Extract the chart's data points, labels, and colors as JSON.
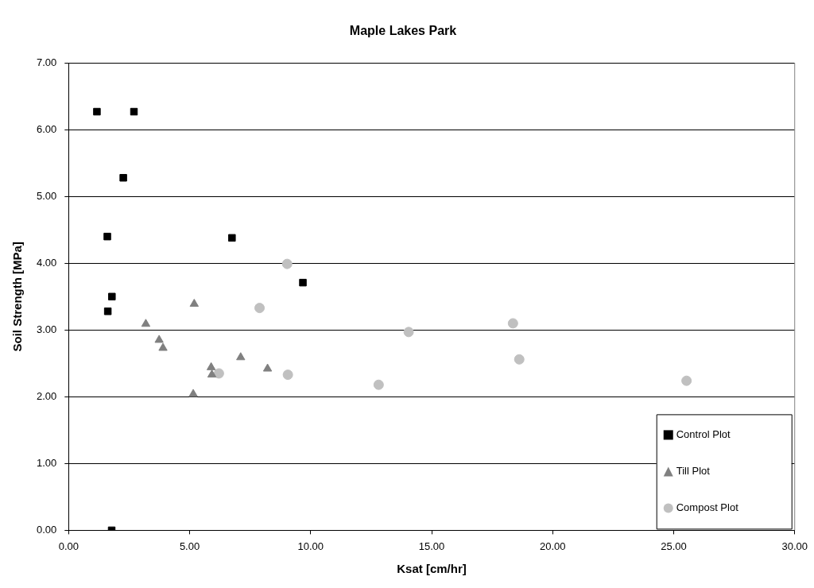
{
  "chart_data": {
    "type": "scatter",
    "title": "Maple Lakes Park",
    "xlabel": "Ksat [cm/hr]",
    "ylabel": "Soil Strength [MPa]",
    "xlim": [
      0,
      30
    ],
    "xticks": [
      {
        "value": 0,
        "label": "0.00"
      },
      {
        "value": 5,
        "label": "5.00"
      },
      {
        "value": 10,
        "label": "10.00"
      },
      {
        "value": 15,
        "label": "15.00"
      },
      {
        "value": 20,
        "label": "20.00"
      },
      {
        "value": 25,
        "label": "25.00"
      },
      {
        "value": 30,
        "label": "30.00"
      }
    ],
    "ylim": [
      0,
      7
    ],
    "yticks": [
      {
        "value": 0,
        "label": "0.00"
      },
      {
        "value": 1,
        "label": "1.00"
      },
      {
        "value": 2,
        "label": "2.00"
      },
      {
        "value": 3,
        "label": "3.00"
      },
      {
        "value": 4,
        "label": "4.00"
      },
      {
        "value": 5,
        "label": "5.00"
      },
      {
        "value": 6,
        "label": "6.00"
      },
      {
        "value": 7,
        "label": "7.00"
      }
    ],
    "grid": "y",
    "legend": "bottom right",
    "series": [
      {
        "name": "Control Plot",
        "color": "#000000",
        "marker": "square",
        "x": [
          1.17,
          2.7,
          2.26,
          1.6,
          6.75,
          1.79,
          1.62,
          9.68,
          1.78
        ],
        "values": [
          6.27,
          6.27,
          5.28,
          4.4,
          4.38,
          3.5,
          3.28,
          3.71,
          0
        ]
      },
      {
        "name": "Till Plot",
        "color": "#808080",
        "marker": "triangle",
        "x": [
          5.19,
          3.19,
          3.74,
          3.9,
          7.11,
          8.22,
          5.89,
          5.92,
          5.15
        ],
        "values": [
          3.39,
          3.09,
          2.85,
          2.73,
          2.59,
          2.42,
          2.44,
          2.33,
          2.04
        ]
      },
      {
        "name": "Compost Plot",
        "color": "#c0c0c0",
        "marker": "circle",
        "x": [
          9.03,
          7.89,
          6.21,
          9.06,
          12.81,
          14.05,
          18.36,
          18.62,
          25.53
        ],
        "values": [
          3.99,
          3.33,
          2.35,
          2.33,
          2.18,
          2.97,
          3.1,
          2.56,
          2.24
        ]
      }
    ]
  }
}
